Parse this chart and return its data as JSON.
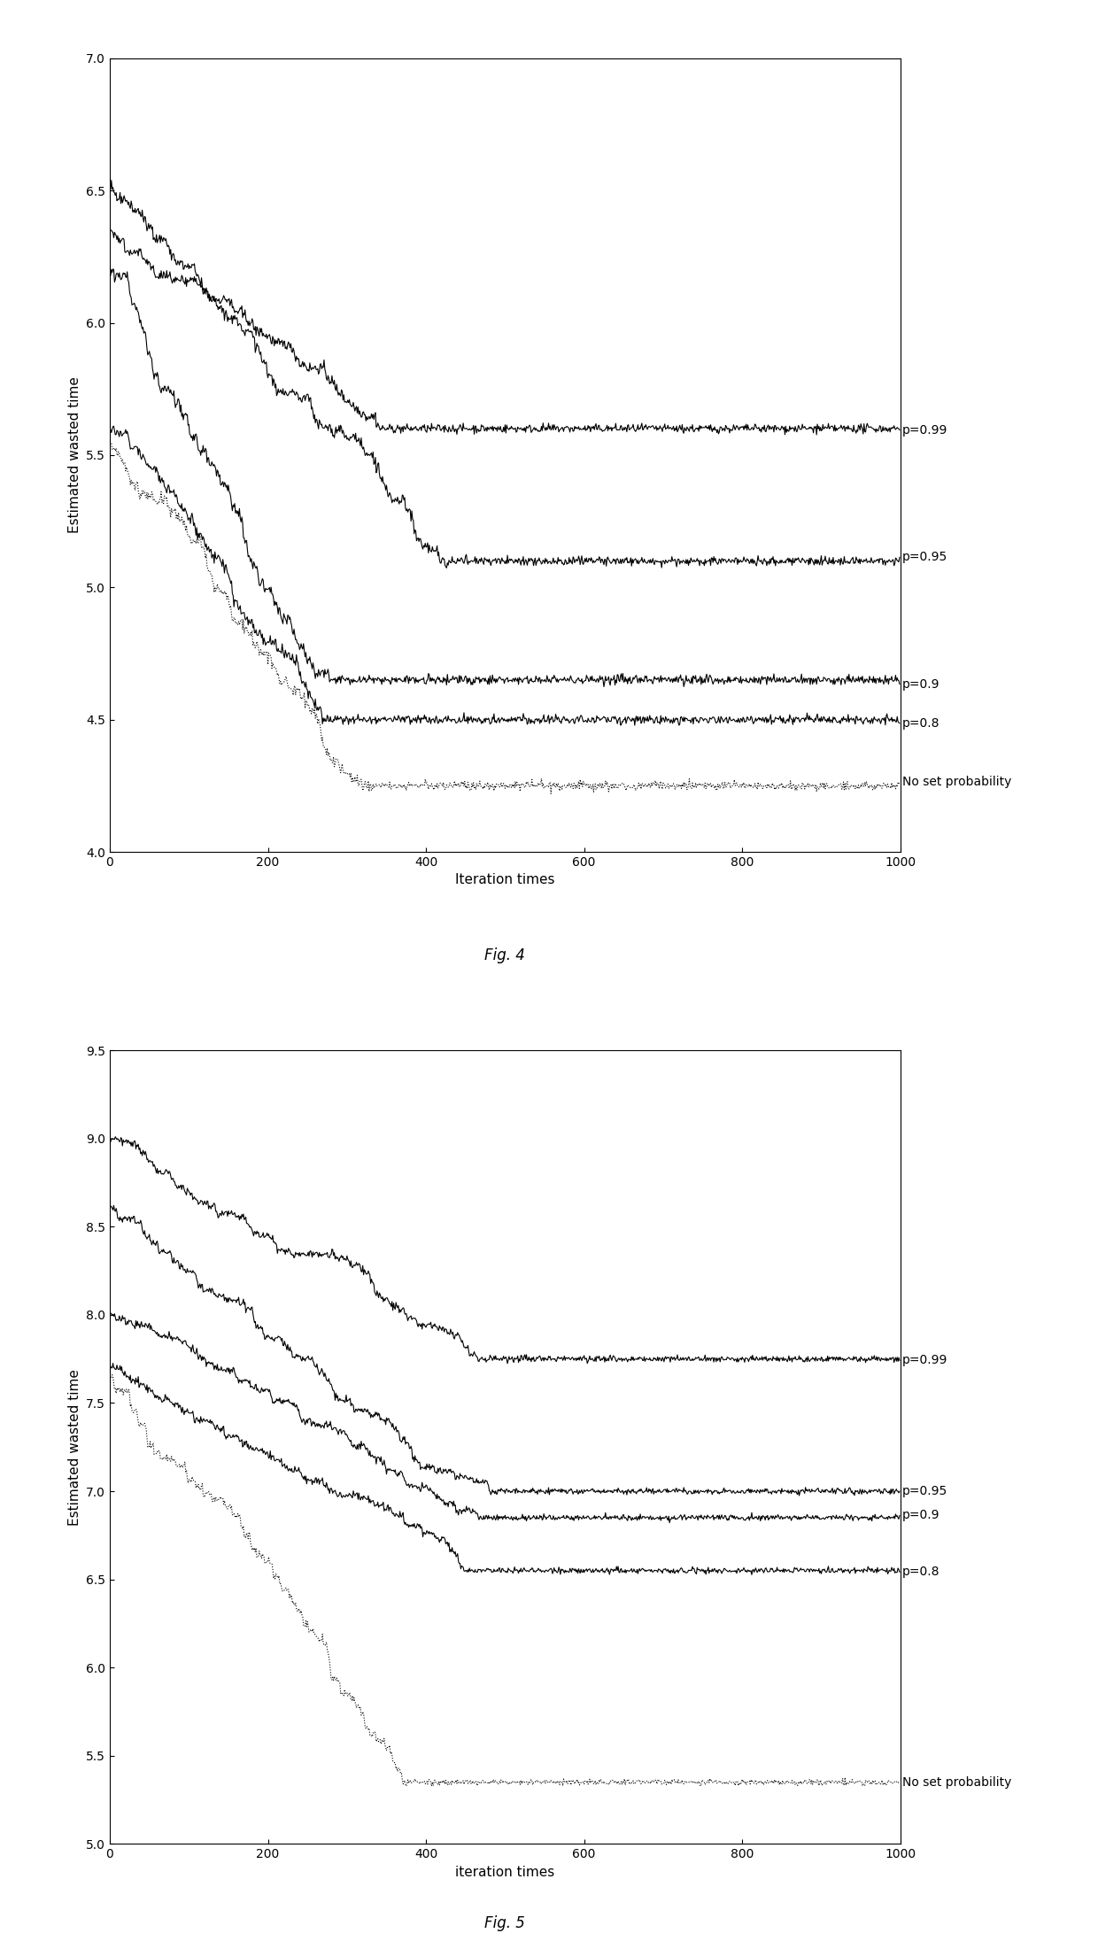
{
  "fig4": {
    "title": "Fig. 4",
    "xlabel": "Iteration times",
    "ylabel": "Estimated wasted time",
    "xlim": [
      0,
      1000
    ],
    "ylim": [
      4,
      7
    ],
    "yticks": [
      4,
      4.5,
      5,
      5.5,
      6,
      6.5,
      7
    ],
    "xticks": [
      0,
      200,
      400,
      600,
      800,
      1000
    ],
    "curves": {
      "p099": {
        "start": 6.5,
        "end": 5.6,
        "converge_at": 350,
        "label": "p=0.99"
      },
      "p095": {
        "start": 6.35,
        "end": 5.1,
        "converge_at": 450,
        "label": "p=0.95"
      },
      "p09": {
        "start": 6.2,
        "end": 4.65,
        "converge_at": 300,
        "label": "p=0.9"
      },
      "p08": {
        "start": 5.6,
        "end": 4.5,
        "converge_at": 280,
        "label": "p=0.8"
      },
      "nsp": {
        "start": 5.55,
        "end": 4.25,
        "converge_at": 350,
        "label": "No set probability"
      }
    }
  },
  "fig5": {
    "title": "Fig. 5",
    "xlabel": "iteration times",
    "ylabel": "Estimated wasted time",
    "xlim": [
      0,
      1000
    ],
    "ylim": [
      5,
      9.5
    ],
    "yticks": [
      5,
      5.5,
      6,
      6.5,
      7,
      7.5,
      8,
      8.5,
      9,
      9.5
    ],
    "xticks": [
      0,
      200,
      400,
      600,
      800,
      1000
    ],
    "curves": {
      "p099": {
        "start": 9.0,
        "end": 7.75,
        "converge_at": 500,
        "label": "p=0.99"
      },
      "p095": {
        "start": 8.6,
        "end": 7.0,
        "converge_at": 500,
        "label": "p=0.95"
      },
      "p09": {
        "start": 8.0,
        "end": 6.85,
        "converge_at": 500,
        "label": "p=0.9"
      },
      "p08": {
        "start": 7.7,
        "end": 6.55,
        "converge_at": 450,
        "label": "p=0.8"
      },
      "nsp": {
        "start": 7.65,
        "end": 5.35,
        "converge_at": 400,
        "label": "No set probability"
      }
    }
  },
  "line_color": "#000000",
  "background_color": "#ffffff",
  "font_size": 11,
  "title_font_size": 12
}
